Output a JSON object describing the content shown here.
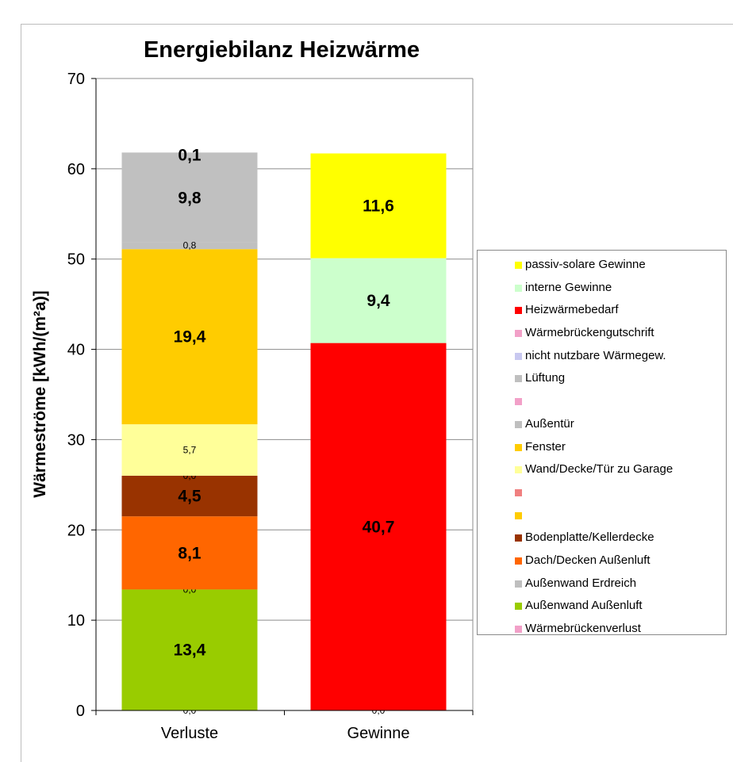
{
  "chart_data": {
    "type": "bar",
    "stacked": true,
    "title": "Energiebilanz Heizwärme",
    "ylabel": "Wärmeströme [kWh/(m²a)]",
    "xlabel": "",
    "ylim": [
      0,
      70
    ],
    "yticks": [
      0,
      10,
      20,
      30,
      40,
      50,
      60,
      70
    ],
    "grid": true,
    "legend_position": "right",
    "categories": [
      "Verluste",
      "Gewinne"
    ],
    "bars": [
      {
        "category": "Verluste",
        "segments": [
          {
            "series": "Wärmebrückenverlust",
            "value": 0.0,
            "label": "0,0",
            "color": "#f2a0c8",
            "label_style": "small"
          },
          {
            "series": "Außenwand Außenluft",
            "value": 13.4,
            "label": "13,4",
            "color": "#99cc00",
            "label_style": "large"
          },
          {
            "series": "Außenwand Erdreich",
            "value": 0.0,
            "label": "0,0",
            "color": "#bfbfbf",
            "label_style": "small"
          },
          {
            "series": "Dach/Decken Außenluft",
            "value": 8.1,
            "label": "8,1",
            "color": "#ff6600",
            "label_style": "large"
          },
          {
            "series": "Bodenplatte/Kellerdecke",
            "value": 4.5,
            "label": "4,5",
            "color": "#993300",
            "label_style": "large"
          },
          {
            "series": "Wand/Decke/Tür zu Garage",
            "value": 0.0,
            "label": "0,0",
            "color": "#ffff99",
            "label_style": "small"
          },
          {
            "series": "Wand/Decke/Tür zu Garage",
            "value": 5.7,
            "label": "5,7",
            "color": "#ffff99",
            "label_style": "small"
          },
          {
            "series": "Fenster",
            "value": 19.4,
            "label": "19,4",
            "color": "#ffcc00",
            "label_style": "large"
          },
          {
            "series": "Außentür",
            "value": 0.8,
            "label": "0,8",
            "color": "#c0c0c0",
            "label_style": "small"
          },
          {
            "series": "Lüftung",
            "value": 9.8,
            "label": "9,8",
            "color": "#c0c0c0",
            "label_style": "large"
          },
          {
            "series": "nicht nutzbare Wärmegew.",
            "value": 0.1,
            "label": "0,1",
            "color": "#c0c0c0",
            "label_style": "large"
          }
        ]
      },
      {
        "category": "Gewinne",
        "segments": [
          {
            "series": "Wärmebrückengutschrift",
            "value": 0.0,
            "label": "0,0",
            "color": "#f2a0c8",
            "label_style": "small"
          },
          {
            "series": "Heizwärmebedarf",
            "value": 40.7,
            "label": "40,7",
            "color": "#ff0000",
            "label_style": "large"
          },
          {
            "series": "interne Gewinne",
            "value": 9.4,
            "label": "9,4",
            "color": "#ccffcc",
            "label_style": "large"
          },
          {
            "series": "passiv-solare Gewinne",
            "value": 11.6,
            "label": "11,6",
            "color": "#ffff00",
            "label_style": "large"
          }
        ]
      }
    ],
    "legend": [
      {
        "label": "passiv-solare Gewinne",
        "color": "#ffff00"
      },
      {
        "label": "interne Gewinne",
        "color": "#ccffcc"
      },
      {
        "label": "Heizwärmebedarf",
        "color": "#ff0000"
      },
      {
        "label": "Wärmebrückengutschrift",
        "color": "#f2a0c8"
      },
      {
        "label": "nicht nutzbare Wärmegew.",
        "color": "#c8c8f0"
      },
      {
        "label": "Lüftung",
        "color": "#bfbfbf"
      },
      {
        "label": "",
        "color": "#f2a0c8"
      },
      {
        "label": "Außentür",
        "color": "#bfbfbf"
      },
      {
        "label": "Fenster",
        "color": "#ffcc00"
      },
      {
        "label": "Wand/Decke/Tür zu Garage",
        "color": "#ffff99"
      },
      {
        "label": "",
        "color": "#f08080"
      },
      {
        "label": "",
        "color": "#ffcc00"
      },
      {
        "label": "Bodenplatte/Kellerdecke",
        "color": "#993300"
      },
      {
        "label": "Dach/Decken Außenluft",
        "color": "#ff6600"
      },
      {
        "label": "Außenwand Erdreich",
        "color": "#bfbfbf"
      },
      {
        "label": "Außenwand Außenluft",
        "color": "#99cc00"
      },
      {
        "label": "Wärmebrückenverlust",
        "color": "#f2a0c8"
      }
    ]
  }
}
